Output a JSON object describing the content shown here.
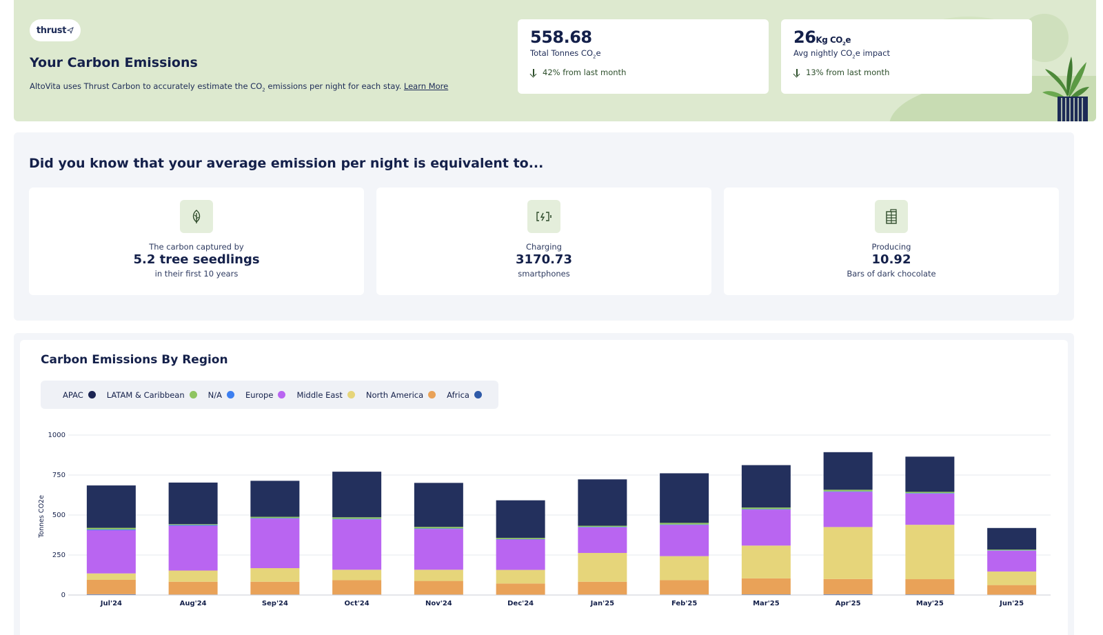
{
  "hero": {
    "logo_text": "thrust",
    "title": "Your Carbon Emissions",
    "desc_pre": "AltoVita uses Thrust Carbon to accurately estimate the CO",
    "desc_sub": "2",
    "desc_post": " emissions per night for each stay.",
    "learn_more": "Learn More"
  },
  "stats": {
    "total": {
      "value": "558.68",
      "label_pre": "Total Tonnes CO",
      "label_sub": "2",
      "label_post": "e",
      "change": "42% from last month"
    },
    "avg": {
      "value": "26",
      "unit_pre": "Kg CO",
      "unit_sub": "2",
      "unit_post": "e",
      "label_pre": "Avg nightly CO",
      "label_sub": "2",
      "label_post": "e impact",
      "change": "13% from last month"
    }
  },
  "equivalents": {
    "title": "Did you know that your average emission per night is equivalent to...",
    "cards": [
      {
        "icon": "leaf-icon",
        "pre": "The carbon captured by",
        "value": "5.2 tree seedlings",
        "post": "in their first 10 years"
      },
      {
        "icon": "battery-charging-icon",
        "pre": "Charging",
        "value": "3170.73",
        "post": "smartphones"
      },
      {
        "icon": "chocolate-bar-icon",
        "pre": "Producing",
        "value": "10.92",
        "post": "Bars of dark chocolate"
      }
    ]
  },
  "chart_section": {
    "title": "Carbon Emissions By Region"
  },
  "chart_data": {
    "type": "bar",
    "stacked": true,
    "title": "Carbon Emissions By Region",
    "ylabel": "Tonnes CO2e",
    "ylim": [
      0,
      1000
    ],
    "yticks": [
      0,
      250,
      500,
      750,
      1000
    ],
    "grid": true,
    "legend_position": "top-left",
    "categories": [
      "Jul'24",
      "Aug'24",
      "Sep'24",
      "Oct'24",
      "Nov'24",
      "Dec'24",
      "Jan'25",
      "Feb'25",
      "Mar'25",
      "Apr'25",
      "May'25",
      "Jun'25"
    ],
    "series": [
      {
        "name": "Africa",
        "color": "#2f5aa8",
        "values": [
          5,
          3,
          3,
          3,
          3,
          2,
          3,
          3,
          4,
          5,
          4,
          2
        ]
      },
      {
        "name": "North America",
        "color": "#e9a258",
        "values": [
          90,
          80,
          80,
          90,
          85,
          70,
          80,
          90,
          100,
          95,
          95,
          60
        ]
      },
      {
        "name": "Middle East",
        "color": "#e6d57a",
        "values": [
          40,
          70,
          85,
          65,
          70,
          85,
          180,
          150,
          205,
          325,
          340,
          85
        ]
      },
      {
        "name": "Europe",
        "color": "#b965f1",
        "values": [
          270,
          280,
          310,
          315,
          255,
          190,
          160,
          195,
          225,
          220,
          195,
          130
        ]
      },
      {
        "name": "Middle East",
        "color": "#e6d57a",
        "values": [
          0,
          0,
          0,
          0,
          0,
          0,
          0,
          0,
          0,
          0,
          0,
          0
        ]
      },
      {
        "name": "N/A",
        "color": "#3d7ff0",
        "values": [
          5,
          5,
          3,
          3,
          3,
          2,
          3,
          3,
          3,
          3,
          3,
          2
        ]
      },
      {
        "name": "LATAM & Caribbean",
        "color": "#8fc461",
        "values": [
          10,
          5,
          8,
          10,
          10,
          8,
          7,
          10,
          10,
          10,
          8,
          5
        ]
      },
      {
        "name": "APAC",
        "color": "#23305d",
        "values": [
          265,
          260,
          225,
          285,
          275,
          235,
          290,
          310,
          265,
          235,
          220,
          135
        ]
      }
    ]
  },
  "legend": [
    {
      "name": "APAC",
      "color": "#1c2553"
    },
    {
      "name": "LATAM & Caribbean",
      "color": "#8fc461"
    },
    {
      "name": "N/A",
      "color": "#3d7ff0"
    },
    {
      "name": "Europe",
      "color": "#b965f1"
    },
    {
      "name": "Middle East",
      "color": "#e6d57a"
    },
    {
      "name": "North America",
      "color": "#e9a258"
    },
    {
      "name": "Africa",
      "color": "#2f5aa8"
    }
  ]
}
